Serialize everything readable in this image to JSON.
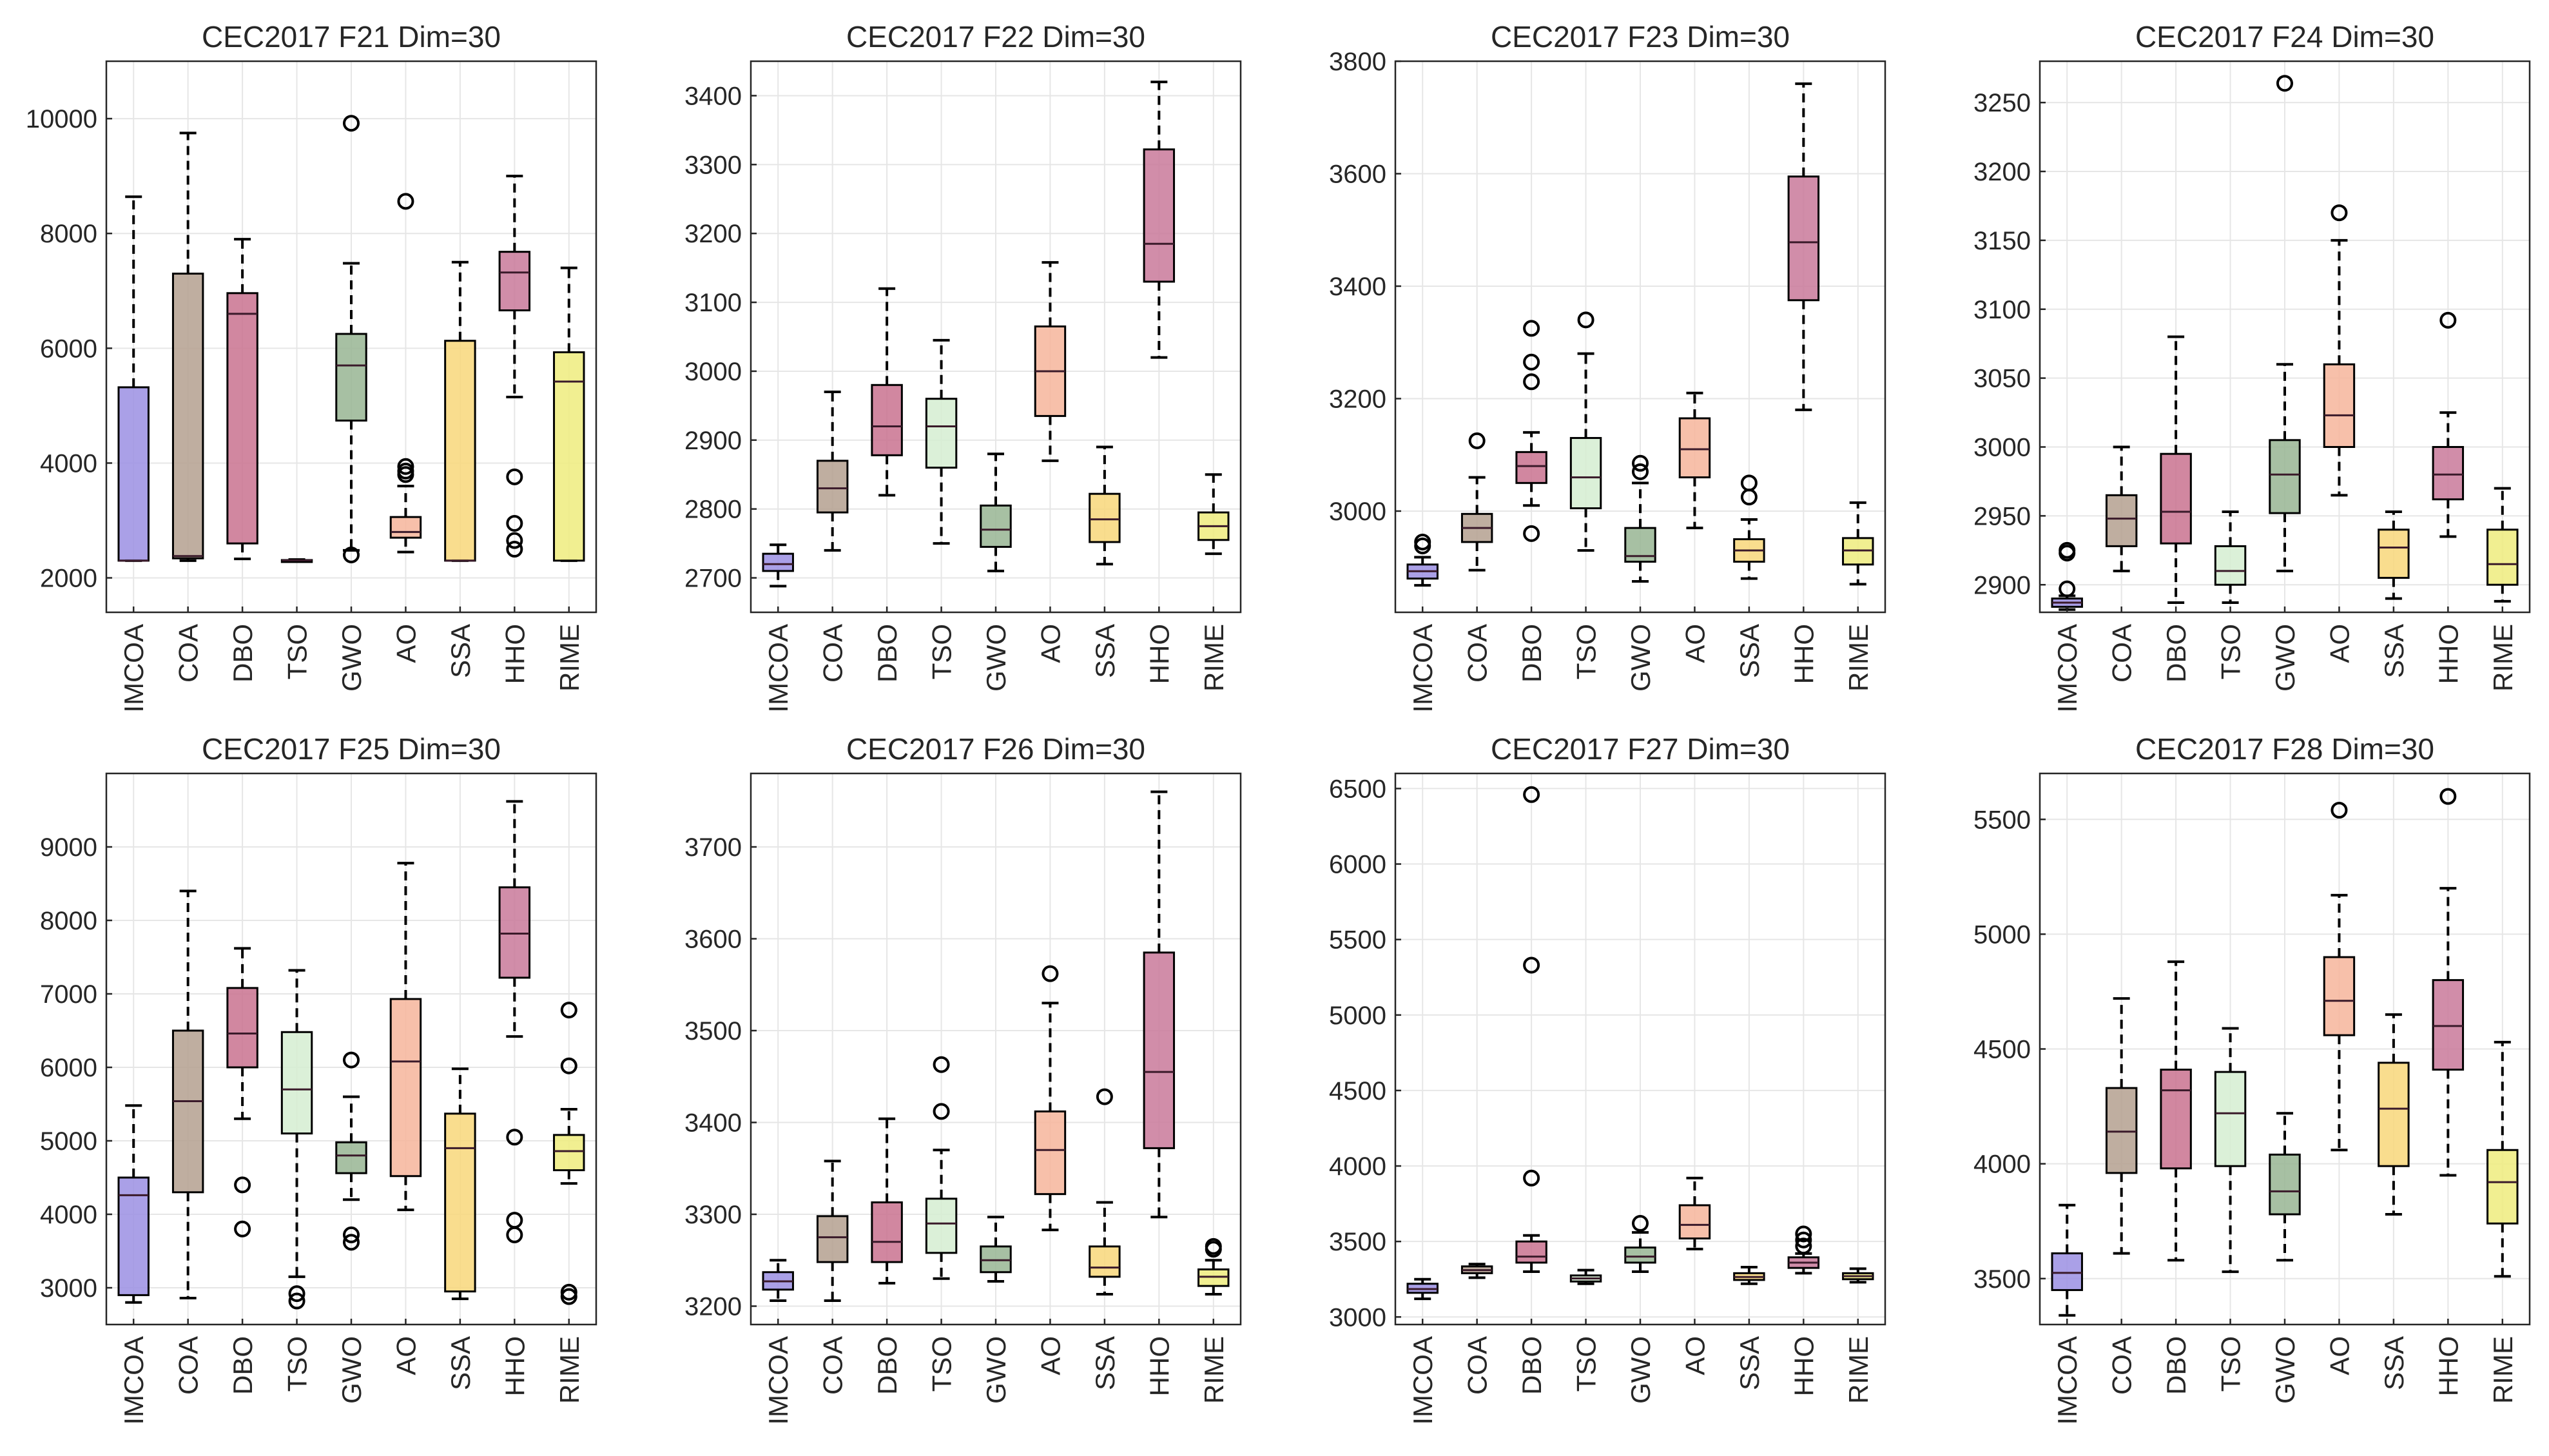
{
  "figure": {
    "layout": "2 rows x 4 columns of box plots"
  },
  "algorithms": [
    "IMCOA",
    "COA",
    "DBO",
    "TSO",
    "GWO",
    "AO",
    "SSA",
    "HHO",
    "RIME"
  ],
  "colors": {
    "IMCOA": "#9b8fe3",
    "COA": "#b4a08f",
    "DBO": "#c9728f",
    "TSO": "#d5edd1",
    "GWO": "#98b593",
    "AO": "#f6b59b",
    "SSA": "#f8d77a",
    "HHO": "#c9799a",
    "RIME": "#eeec7e"
  },
  "chart_data": [
    {
      "type": "box",
      "title": "CEC2017 F21 Dim=30",
      "ylim": [
        1400,
        11000
      ],
      "yticks": [
        2000,
        4000,
        6000,
        8000,
        10000
      ],
      "boxes": [
        {
          "q1": 2300,
          "median": 2300,
          "q3": 5320,
          "whislo": 2300,
          "whishi": 8640,
          "outliers": []
        },
        {
          "q1": 2340,
          "median": 2380,
          "q3": 7300,
          "whislo": 2300,
          "whishi": 9750,
          "outliers": []
        },
        {
          "q1": 2600,
          "median": 6600,
          "q3": 6960,
          "whislo": 2330,
          "whishi": 7900,
          "outliers": []
        },
        {
          "q1": 2300,
          "median": 2305,
          "q3": 2310,
          "whislo": 2290,
          "whishi": 2320,
          "outliers": []
        },
        {
          "q1": 4740,
          "median": 5700,
          "q3": 6250,
          "whislo": 2480,
          "whishi": 7480,
          "outliers": [
            9920,
            2400
          ]
        },
        {
          "q1": 2700,
          "median": 2800,
          "q3": 3060,
          "whislo": 2450,
          "whishi": 3600,
          "outliers": [
            8560,
            3940,
            3860,
            3800
          ]
        },
        {
          "q1": 2300,
          "median": 2300,
          "q3": 6130,
          "whislo": 2300,
          "whishi": 7500,
          "outliers": []
        },
        {
          "q1": 6660,
          "median": 7320,
          "q3": 7680,
          "whislo": 5150,
          "whishi": 9000,
          "outliers": [
            3760,
            2950,
            2650,
            2500
          ]
        },
        {
          "q1": 2300,
          "median": 5420,
          "q3": 5930,
          "whislo": 2300,
          "whishi": 7400,
          "outliers": []
        }
      ]
    },
    {
      "type": "box",
      "title": "CEC2017 F22 Dim=30",
      "ylim": [
        2650,
        3450
      ],
      "yticks": [
        2700,
        2800,
        2900,
        3000,
        3100,
        3200,
        3300,
        3400
      ],
      "boxes": [
        {
          "q1": 2710,
          "median": 2720,
          "q3": 2735,
          "whislo": 2688,
          "whishi": 2748,
          "outliers": []
        },
        {
          "q1": 2795,
          "median": 2830,
          "q3": 2870,
          "whislo": 2740,
          "whishi": 2970,
          "outliers": []
        },
        {
          "q1": 2878,
          "median": 2920,
          "q3": 2980,
          "whislo": 2820,
          "whishi": 3120,
          "outliers": []
        },
        {
          "q1": 2860,
          "median": 2920,
          "q3": 2960,
          "whislo": 2750,
          "whishi": 3045,
          "outliers": []
        },
        {
          "q1": 2745,
          "median": 2770,
          "q3": 2805,
          "whislo": 2710,
          "whishi": 2880,
          "outliers": []
        },
        {
          "q1": 2935,
          "median": 3000,
          "q3": 3065,
          "whislo": 2870,
          "whishi": 3158,
          "outliers": []
        },
        {
          "q1": 2752,
          "median": 2785,
          "q3": 2822,
          "whislo": 2720,
          "whishi": 2890,
          "outliers": []
        },
        {
          "q1": 3130,
          "median": 3185,
          "q3": 3322,
          "whislo": 3020,
          "whishi": 3420,
          "outliers": []
        },
        {
          "q1": 2755,
          "median": 2775,
          "q3": 2795,
          "whislo": 2735,
          "whishi": 2850,
          "outliers": []
        }
      ]
    },
    {
      "type": "box",
      "title": "CEC2017 F23 Dim=30",
      "ylim": [
        2820,
        3800
      ],
      "yticks": [
        3000,
        3200,
        3400,
        3600,
        3800
      ],
      "boxes": [
        {
          "q1": 2880,
          "median": 2893,
          "q3": 2905,
          "whislo": 2868,
          "whishi": 2918,
          "outliers": [
            2945,
            2938
          ]
        },
        {
          "q1": 2945,
          "median": 2970,
          "q3": 2995,
          "whislo": 2895,
          "whishi": 3060,
          "outliers": [
            3125
          ]
        },
        {
          "q1": 3050,
          "median": 3080,
          "q3": 3105,
          "whislo": 3010,
          "whishi": 3140,
          "outliers": [
            3325,
            3265,
            3230,
            2960
          ]
        },
        {
          "q1": 3005,
          "median": 3060,
          "q3": 3130,
          "whislo": 2930,
          "whishi": 3280,
          "outliers": [
            3340
          ]
        },
        {
          "q1": 2910,
          "median": 2920,
          "q3": 2970,
          "whislo": 2875,
          "whishi": 3050,
          "outliers": [
            3085,
            3070
          ]
        },
        {
          "q1": 3060,
          "median": 3110,
          "q3": 3165,
          "whislo": 2970,
          "whishi": 3210,
          "outliers": []
        },
        {
          "q1": 2910,
          "median": 2930,
          "q3": 2950,
          "whislo": 2880,
          "whishi": 2985,
          "outliers": [
            3050,
            3025
          ]
        },
        {
          "q1": 3375,
          "median": 3478,
          "q3": 3595,
          "whislo": 3180,
          "whishi": 3760,
          "outliers": []
        },
        {
          "q1": 2905,
          "median": 2930,
          "q3": 2952,
          "whislo": 2870,
          "whishi": 3015,
          "outliers": []
        }
      ]
    },
    {
      "type": "box",
      "title": "CEC2017 F24 Dim=30",
      "ylim": [
        2880,
        3280
      ],
      "yticks": [
        2900,
        2950,
        3000,
        3050,
        3100,
        3150,
        3200,
        3250
      ],
      "boxes": [
        {
          "q1": 2884,
          "median": 2887,
          "q3": 2890,
          "whislo": 2882,
          "whishi": 2892,
          "outliers": [
            2925,
            2923,
            2897
          ]
        },
        {
          "q1": 2928,
          "median": 2948,
          "q3": 2965,
          "whislo": 2910,
          "whishi": 3000,
          "outliers": []
        },
        {
          "q1": 2930,
          "median": 2953,
          "q3": 2995,
          "whislo": 2887,
          "whishi": 3080,
          "outliers": []
        },
        {
          "q1": 2900,
          "median": 2910,
          "q3": 2928,
          "whislo": 2887,
          "whishi": 2953,
          "outliers": []
        },
        {
          "q1": 2952,
          "median": 2980,
          "q3": 3005,
          "whislo": 2910,
          "whishi": 3060,
          "outliers": [
            3264
          ]
        },
        {
          "q1": 3000,
          "median": 3023,
          "q3": 3060,
          "whislo": 2965,
          "whishi": 3150,
          "outliers": [
            3170
          ]
        },
        {
          "q1": 2905,
          "median": 2927,
          "q3": 2940,
          "whislo": 2890,
          "whishi": 2953,
          "outliers": []
        },
        {
          "q1": 2962,
          "median": 2980,
          "q3": 3000,
          "whislo": 2935,
          "whishi": 3025,
          "outliers": [
            3092
          ]
        },
        {
          "q1": 2900,
          "median": 2915,
          "q3": 2940,
          "whislo": 2888,
          "whishi": 2970,
          "outliers": []
        }
      ]
    },
    {
      "type": "box",
      "title": "CEC2017 F25 Dim=30",
      "ylim": [
        2500,
        10000
      ],
      "yticks": [
        3000,
        4000,
        5000,
        6000,
        7000,
        8000,
        9000
      ],
      "boxes": [
        {
          "q1": 2900,
          "median": 4260,
          "q3": 4500,
          "whislo": 2800,
          "whishi": 5480,
          "outliers": []
        },
        {
          "q1": 4300,
          "median": 5540,
          "q3": 6500,
          "whislo": 2860,
          "whishi": 8400,
          "outliers": []
        },
        {
          "q1": 6000,
          "median": 6460,
          "q3": 7080,
          "whislo": 5300,
          "whishi": 7620,
          "outliers": [
            4400,
            3800
          ]
        },
        {
          "q1": 5100,
          "median": 5700,
          "q3": 6480,
          "whislo": 3150,
          "whishi": 7320,
          "outliers": [
            2920,
            2820
          ]
        },
        {
          "q1": 4560,
          "median": 4800,
          "q3": 4980,
          "whislo": 4200,
          "whishi": 5600,
          "outliers": [
            6100,
            3720,
            3620
          ]
        },
        {
          "q1": 4520,
          "median": 6080,
          "q3": 6930,
          "whislo": 4060,
          "whishi": 8780,
          "outliers": []
        },
        {
          "q1": 2950,
          "median": 4900,
          "q3": 5370,
          "whislo": 2850,
          "whishi": 5980,
          "outliers": []
        },
        {
          "q1": 7220,
          "median": 7820,
          "q3": 8450,
          "whislo": 6420,
          "whishi": 9620,
          "outliers": [
            5050,
            3920,
            3720
          ]
        },
        {
          "q1": 4600,
          "median": 4860,
          "q3": 5080,
          "whislo": 4420,
          "whishi": 5430,
          "outliers": [
            6780,
            6020,
            2940,
            2880
          ]
        }
      ]
    },
    {
      "type": "box",
      "title": "CEC2017 F26 Dim=30",
      "ylim": [
        3180,
        3780
      ],
      "yticks": [
        3200,
        3300,
        3400,
        3500,
        3600,
        3700
      ],
      "boxes": [
        {
          "q1": 3218,
          "median": 3227,
          "q3": 3237,
          "whislo": 3206,
          "whishi": 3250,
          "outliers": []
        },
        {
          "q1": 3248,
          "median": 3275,
          "q3": 3298,
          "whislo": 3206,
          "whishi": 3358,
          "outliers": []
        },
        {
          "q1": 3248,
          "median": 3270,
          "q3": 3313,
          "whislo": 3225,
          "whishi": 3404,
          "outliers": []
        },
        {
          "q1": 3258,
          "median": 3290,
          "q3": 3317,
          "whislo": 3230,
          "whishi": 3370,
          "outliers": [
            3463,
            3412
          ]
        },
        {
          "q1": 3237,
          "median": 3250,
          "q3": 3265,
          "whislo": 3227,
          "whishi": 3297,
          "outliers": []
        },
        {
          "q1": 3322,
          "median": 3370,
          "q3": 3412,
          "whislo": 3283,
          "whishi": 3530,
          "outliers": [
            3562
          ]
        },
        {
          "q1": 3232,
          "median": 3242,
          "q3": 3265,
          "whislo": 3213,
          "whishi": 3313,
          "outliers": [
            3428
          ]
        },
        {
          "q1": 3372,
          "median": 3455,
          "q3": 3585,
          "whislo": 3297,
          "whishi": 3760,
          "outliers": []
        },
        {
          "q1": 3222,
          "median": 3232,
          "q3": 3240,
          "whislo": 3213,
          "whishi": 3250,
          "outliers": [
            3265,
            3262
          ]
        }
      ]
    },
    {
      "type": "box",
      "title": "CEC2017 F27 Dim=30",
      "ylim": [
        2950,
        6600
      ],
      "yticks": [
        3000,
        3500,
        4000,
        4500,
        5000,
        5500,
        6000,
        6500
      ],
      "boxes": [
        {
          "q1": 3160,
          "median": 3185,
          "q3": 3220,
          "whislo": 3120,
          "whishi": 3250,
          "outliers": []
        },
        {
          "q1": 3290,
          "median": 3310,
          "q3": 3335,
          "whislo": 3260,
          "whishi": 3350,
          "outliers": []
        },
        {
          "q1": 3360,
          "median": 3400,
          "q3": 3500,
          "whislo": 3300,
          "whishi": 3540,
          "outliers": [
            6460,
            5330,
            3920
          ]
        },
        {
          "q1": 3235,
          "median": 3255,
          "q3": 3275,
          "whislo": 3220,
          "whishi": 3310,
          "outliers": []
        },
        {
          "q1": 3360,
          "median": 3400,
          "q3": 3460,
          "whislo": 3300,
          "whishi": 3560,
          "outliers": [
            3620
          ]
        },
        {
          "q1": 3520,
          "median": 3610,
          "q3": 3740,
          "whislo": 3450,
          "whishi": 3920,
          "outliers": []
        },
        {
          "q1": 3245,
          "median": 3265,
          "q3": 3290,
          "whislo": 3220,
          "whishi": 3330,
          "outliers": []
        },
        {
          "q1": 3325,
          "median": 3360,
          "q3": 3395,
          "whislo": 3290,
          "whishi": 3420,
          "outliers": [
            3550,
            3510,
            3470
          ]
        },
        {
          "q1": 3250,
          "median": 3270,
          "q3": 3290,
          "whislo": 3230,
          "whishi": 3320,
          "outliers": []
        }
      ]
    },
    {
      "type": "box",
      "title": "CEC2017 F28 Dim=30",
      "ylim": [
        3300,
        5700
      ],
      "yticks": [
        3500,
        4000,
        4500,
        5000,
        5500
      ],
      "boxes": [
        {
          "q1": 3450,
          "median": 3525,
          "q3": 3610,
          "whislo": 3340,
          "whishi": 3820,
          "outliers": []
        },
        {
          "q1": 3960,
          "median": 4140,
          "q3": 4330,
          "whislo": 3610,
          "whishi": 4720,
          "outliers": []
        },
        {
          "q1": 3980,
          "median": 4320,
          "q3": 4410,
          "whislo": 3580,
          "whishi": 4880,
          "outliers": []
        },
        {
          "q1": 3990,
          "median": 4220,
          "q3": 4400,
          "whislo": 3530,
          "whishi": 4590,
          "outliers": []
        },
        {
          "q1": 3780,
          "median": 3880,
          "q3": 4040,
          "whislo": 3580,
          "whishi": 4220,
          "outliers": []
        },
        {
          "q1": 4560,
          "median": 4710,
          "q3": 4900,
          "whislo": 4060,
          "whishi": 5170,
          "outliers": [
            5540
          ]
        },
        {
          "q1": 3990,
          "median": 4240,
          "q3": 4440,
          "whislo": 3780,
          "whishi": 4650,
          "outliers": []
        },
        {
          "q1": 4410,
          "median": 4600,
          "q3": 4800,
          "whislo": 3950,
          "whishi": 5200,
          "outliers": [
            5600
          ]
        },
        {
          "q1": 3740,
          "median": 3920,
          "q3": 4060,
          "whislo": 3510,
          "whishi": 4530,
          "outliers": []
        }
      ]
    }
  ]
}
